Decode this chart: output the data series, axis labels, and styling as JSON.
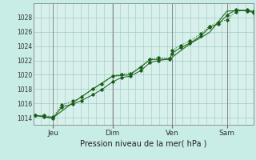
{
  "xlabel": "Pression niveau de la mer( hPa )",
  "background_color": "#c8ece6",
  "grid_color": "#a0c8c0",
  "plot_bg_color": "#d8f0ec",
  "line_color_dark": "#1a5c1a",
  "line_color_mid": "#2d7a2d",
  "ylim": [
    1013.0,
    1030.0
  ],
  "yticks": [
    1014,
    1016,
    1018,
    1020,
    1022,
    1024,
    1026,
    1028
  ],
  "day_labels": [
    "Jeu",
    "Dim",
    "Ven",
    "Sam"
  ],
  "day_positions": [
    0.09,
    0.36,
    0.63,
    0.88
  ],
  "series1_x": [
    0.01,
    0.05,
    0.09,
    0.13,
    0.18,
    0.22,
    0.27,
    0.31,
    0.36,
    0.4,
    0.44,
    0.49,
    0.53,
    0.57,
    0.62,
    0.63,
    0.67,
    0.71,
    0.76,
    0.8,
    0.84,
    0.88,
    0.92,
    0.97,
    1.0
  ],
  "series1_y": [
    1014.3,
    1014.3,
    1014.1,
    1015.8,
    1016.3,
    1016.9,
    1018.0,
    1018.7,
    1019.8,
    1020.1,
    1020.2,
    1021.0,
    1022.2,
    1022.4,
    1022.3,
    1023.4,
    1024.1,
    1024.7,
    1025.7,
    1026.8,
    1027.3,
    1027.7,
    1028.8,
    1029.1,
    1028.9
  ],
  "series2_x": [
    0.01,
    0.05,
    0.09,
    0.13,
    0.18,
    0.22,
    0.27,
    0.31,
    0.36,
    0.4,
    0.44,
    0.49,
    0.53,
    0.57,
    0.62,
    0.63,
    0.67,
    0.71,
    0.76,
    0.8,
    0.84,
    0.88,
    0.92,
    0.97,
    1.0
  ],
  "series2_y": [
    1014.3,
    1014.1,
    1013.9,
    1015.5,
    1015.9,
    1016.4,
    1017.2,
    1017.9,
    1019.0,
    1019.6,
    1019.8,
    1020.6,
    1021.7,
    1022.0,
    1022.2,
    1023.0,
    1023.8,
    1024.4,
    1025.4,
    1026.6,
    1027.1,
    1028.3,
    1029.1,
    1028.9,
    1028.7
  ],
  "series3_x": [
    0.01,
    0.09,
    0.18,
    0.27,
    0.36,
    0.44,
    0.53,
    0.62,
    0.71,
    0.8,
    0.88,
    0.97,
    1.0
  ],
  "series3_y": [
    1014.3,
    1014.0,
    1016.1,
    1018.0,
    1019.8,
    1020.0,
    1022.1,
    1022.2,
    1024.3,
    1025.9,
    1028.9,
    1029.0,
    1028.8
  ]
}
